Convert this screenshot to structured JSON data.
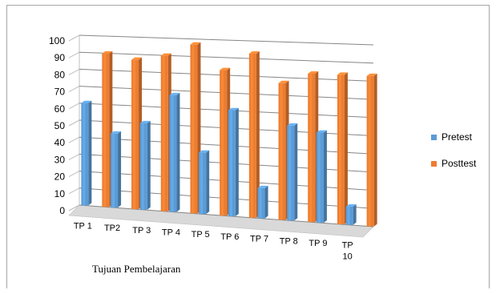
{
  "chart_data": {
    "type": "bar",
    "title": "",
    "xlabel": "Tujuan Pembelajaran",
    "ylabel": "",
    "ylim": [
      0,
      100
    ],
    "yticks": [
      "0",
      "10",
      "20",
      "30",
      "40",
      "50",
      "60",
      "70",
      "80",
      "90",
      "100"
    ],
    "categories": [
      "TP 1",
      "TP2",
      "TP 3",
      "TP 4",
      "TP 5",
      "TP 6",
      "TP 7",
      "TP 8",
      "TP 9",
      "TP 10"
    ],
    "series": [
      {
        "name": "Pretest",
        "color": "#5b9bd5",
        "values": [
          60,
          43,
          50,
          67,
          35,
          60,
          17,
          53,
          50,
          10
        ]
      },
      {
        "name": "Posttest",
        "color": "#ed7d31",
        "values": [
          90,
          87,
          90,
          97,
          83,
          93,
          77,
          83,
          83,
          83
        ]
      }
    ],
    "grid": true,
    "legend_position": "right"
  }
}
